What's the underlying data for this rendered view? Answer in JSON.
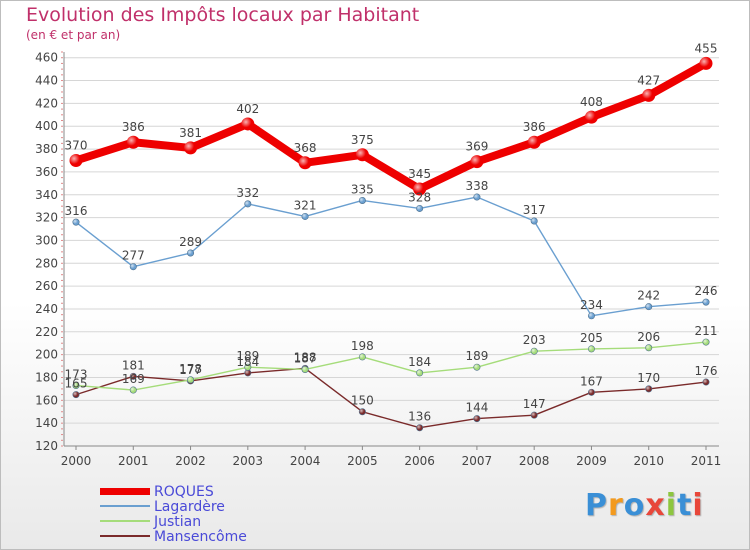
{
  "header": {
    "title": "Evolution des Impôts locaux par Habitant",
    "subtitle": "(en € et par an)"
  },
  "logo": {
    "letters": [
      "P",
      "r",
      "o",
      "x",
      "i",
      "t",
      "i"
    ],
    "colors": [
      "#3a8fd6",
      "#f39a1e",
      "#3a8fd6",
      "#e8473a",
      "#8dc63f",
      "#3a8fd6",
      "#e8473a"
    ]
  },
  "chart_data": {
    "type": "line",
    "title": "Evolution des Impôts locaux par Habitant",
    "subtitle": "(en € et par an)",
    "xlabel": "",
    "ylabel": "",
    "x": [
      "2000",
      "2001",
      "2002",
      "2003",
      "2004",
      "2005",
      "2006",
      "2007",
      "2008",
      "2009",
      "2010",
      "2011"
    ],
    "ylim": [
      120,
      465
    ],
    "yticks": [
      120,
      140,
      160,
      180,
      200,
      220,
      240,
      260,
      280,
      300,
      320,
      340,
      360,
      380,
      400,
      420,
      440,
      460
    ],
    "grid": "horizontal",
    "legend_position": "bottom-left",
    "series": [
      {
        "name": "ROQUES",
        "color": "#ee0000",
        "emphasis": "bold",
        "values": [
          370,
          386,
          381,
          402,
          368,
          375,
          345,
          369,
          386,
          408,
          427,
          455
        ]
      },
      {
        "name": "Lagardère",
        "color": "#6a9fd0",
        "emphasis": "normal",
        "values": [
          316,
          277,
          289,
          332,
          321,
          335,
          328,
          338,
          317,
          234,
          242,
          246
        ]
      },
      {
        "name": "Justian",
        "color": "#a5dc7a",
        "emphasis": "normal",
        "values": [
          173,
          169,
          178,
          189,
          187,
          198,
          184,
          189,
          203,
          205,
          206,
          211
        ]
      },
      {
        "name": "Mansencôme",
        "color": "#7a2a2a",
        "emphasis": "normal",
        "values": [
          165,
          181,
          177,
          184,
          188,
          150,
          136,
          144,
          147,
          167,
          170,
          176
        ]
      }
    ]
  }
}
